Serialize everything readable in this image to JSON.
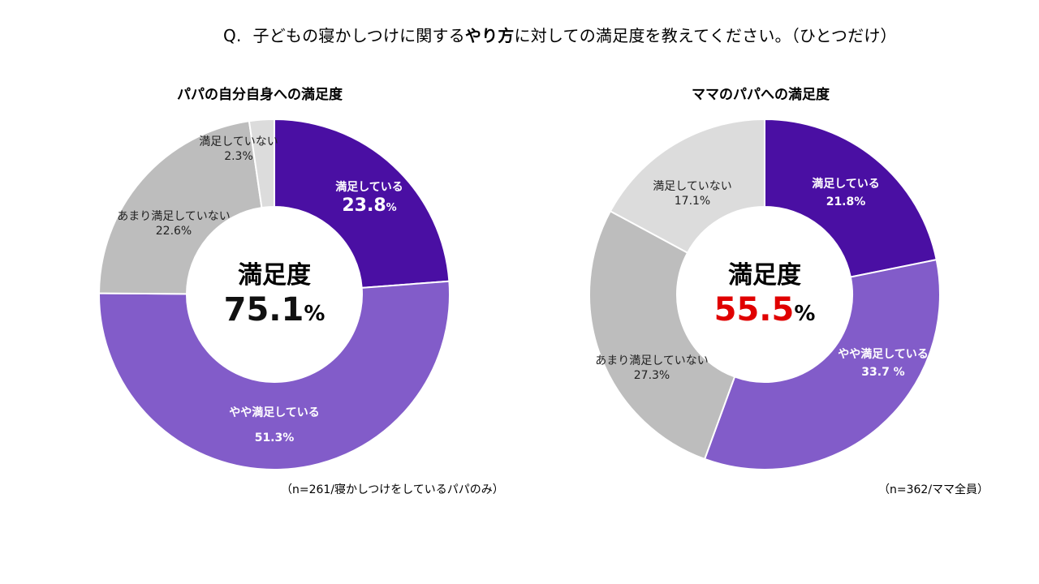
{
  "question": {
    "prefix": "Q.",
    "part1": "子どもの寝かしつけに関する",
    "bold": "やり方",
    "part2": "に対しての満足度を教えてください。（ひとつだけ）"
  },
  "chart_data": [
    {
      "type": "pie",
      "title": "パパの自分自身への満足度",
      "center_label": "満足度",
      "center_value": "75.1",
      "center_unit": "%",
      "center_value_color": "#111111",
      "note": "（n=261/寝かしつけをしているパパのみ）",
      "slices": [
        {
          "name": "満足している",
          "value": 23.8,
          "label_value": "23.8",
          "unit": "%",
          "color": "#4a0fa3",
          "text": "light"
        },
        {
          "name": "やや満足している",
          "value": 51.3,
          "label_value": "51.3%",
          "unit": "",
          "color": "#825cc9",
          "text": "light"
        },
        {
          "name": "あまり満足していない",
          "value": 22.6,
          "label_value": "22.6%",
          "unit": "",
          "color": "#bdbdbd",
          "text": "dark"
        },
        {
          "name": "満足していない",
          "value": 2.3,
          "label_value": "2.3%",
          "unit": "",
          "color": "#dcdcdc",
          "text": "dark"
        }
      ]
    },
    {
      "type": "pie",
      "title": "ママのパパへの満足度",
      "center_label": "満足度",
      "center_value": "55.5",
      "center_unit": "%",
      "center_value_color": "#e00000",
      "note": "（n=362/ママ全員）",
      "slices": [
        {
          "name": "満足している",
          "value": 21.8,
          "label_value": "21.8%",
          "unit": "",
          "color": "#4a0fa3",
          "text": "light"
        },
        {
          "name": "やや満足している",
          "value": 33.7,
          "label_value": "33.7 %",
          "unit": "",
          "color": "#825cc9",
          "text": "light"
        },
        {
          "name": "あまり満足していない",
          "value": 27.3,
          "label_value": "27.3%",
          "unit": "",
          "color": "#bdbdbd",
          "text": "dark"
        },
        {
          "name": "満足していない",
          "value": 17.1,
          "label_value": "17.1%",
          "unit": "",
          "color": "#dcdcdc",
          "text": "dark"
        }
      ]
    }
  ]
}
